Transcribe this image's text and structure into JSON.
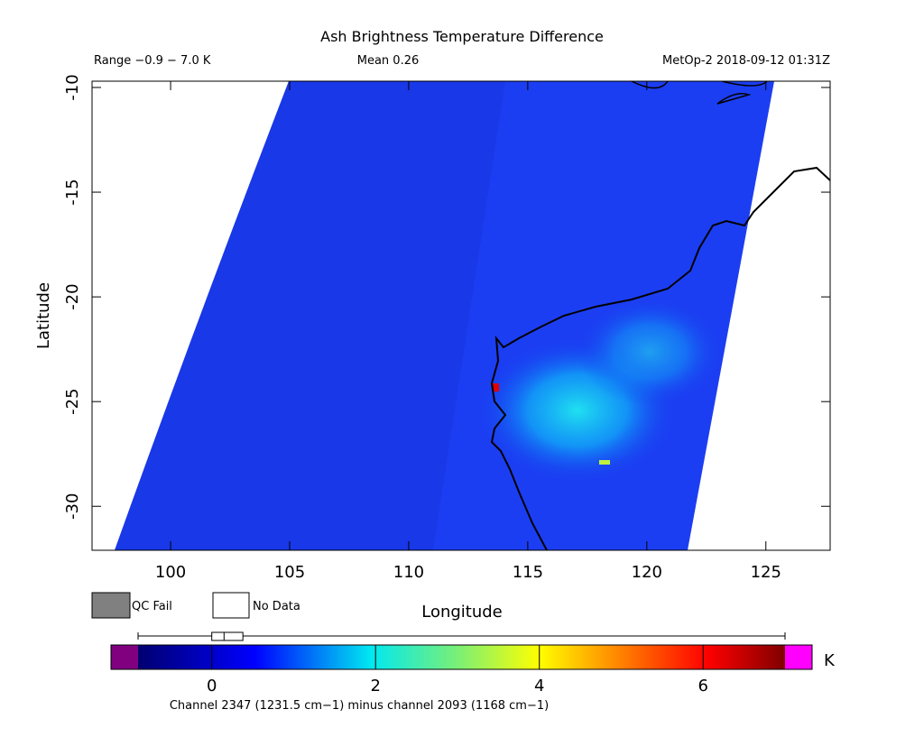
{
  "chart_data": {
    "type": "map",
    "title": "Ash Brightness Temperature Difference",
    "range_label": "Range −0.9 − 7.0 K",
    "mean_label": "Mean 0.26",
    "source_label": "MetOp-2 2018-09-12 01:31Z",
    "xlabel": "Longitude",
    "ylabel": "Latitude",
    "xlim": [
      96.7,
      127.7
    ],
    "xticks": [
      100,
      105,
      110,
      115,
      120,
      125
    ],
    "ylim": [
      -32.1,
      -9.7
    ],
    "yticks": [
      -30,
      -25,
      -20,
      -15,
      -10
    ],
    "legend": [
      {
        "name": "QC Fail",
        "color": "#808080"
      },
      {
        "name": "No Data",
        "color": "#ffffff"
      }
    ],
    "colorbar": {
      "lim": [
        -0.9,
        7.0
      ],
      "ticks": [
        0,
        2,
        4,
        6
      ],
      "unit": "K",
      "label": "Channel 2347 (1231.5 cm−1) minus channel 2093 (1168 cm−1)",
      "boxplot": {
        "min": -0.9,
        "q1": 0.0,
        "median": 0.15,
        "q3": 0.38,
        "max": 7.0
      }
    }
  }
}
